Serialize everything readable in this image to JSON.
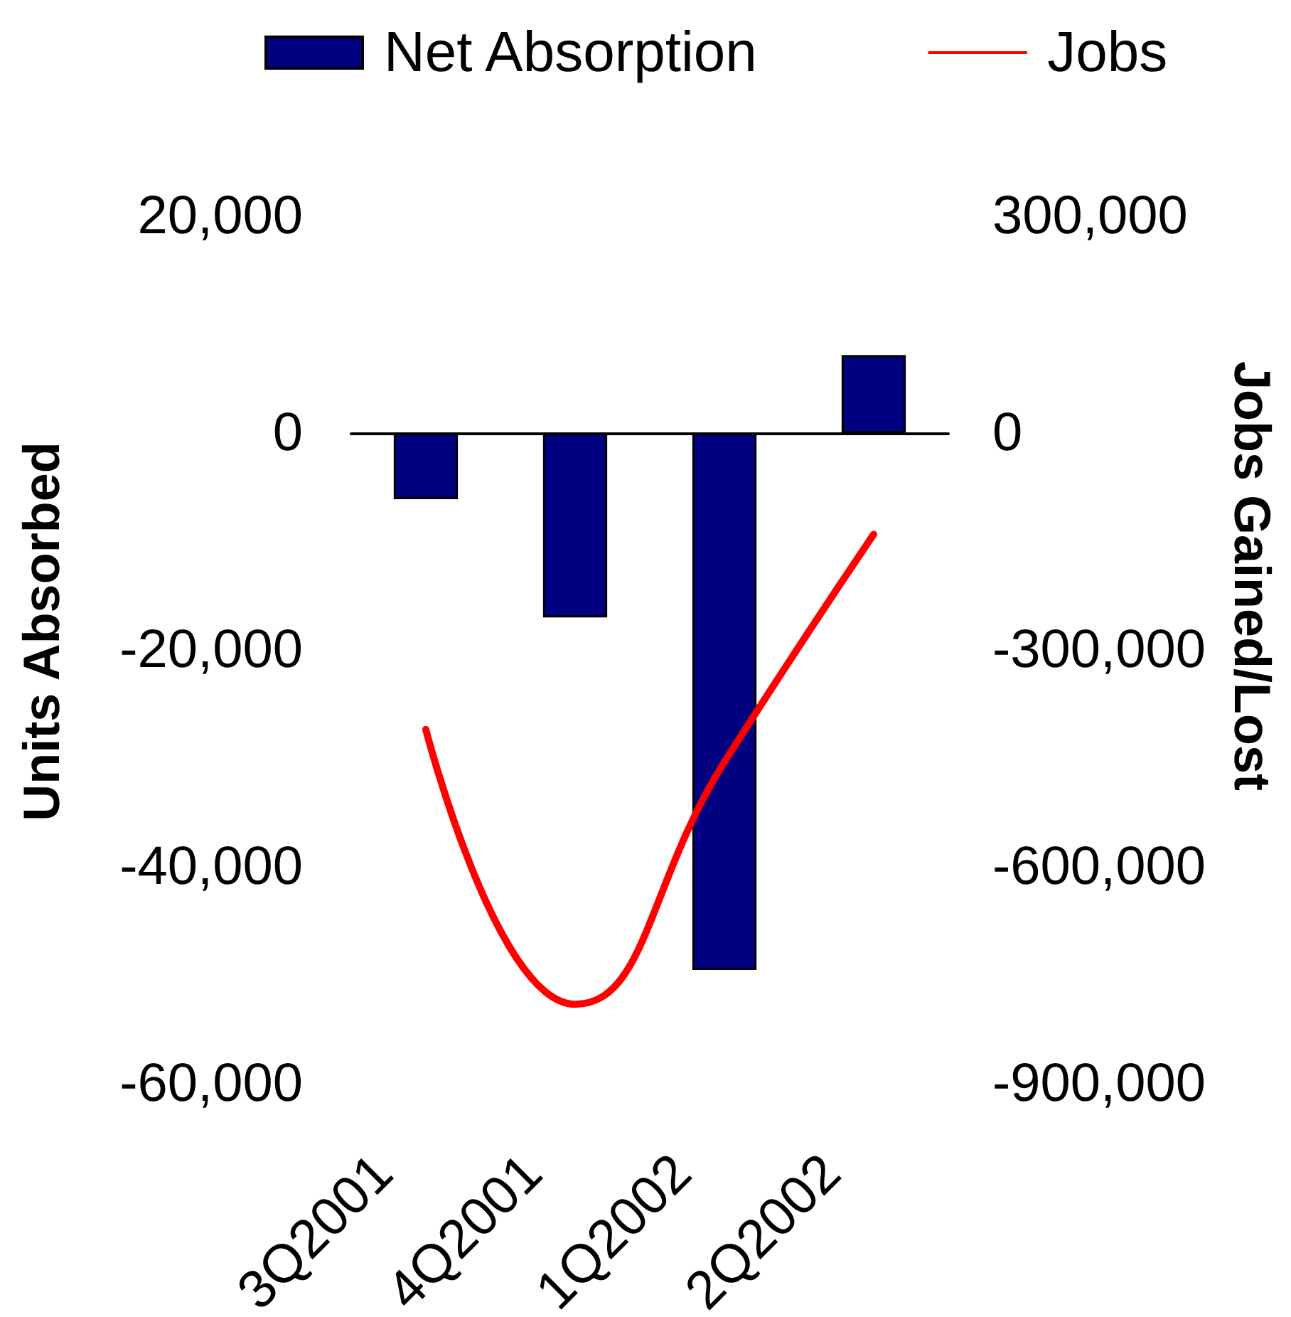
{
  "chart_data": {
    "type": "bar",
    "categories": [
      "3Q2001",
      "4Q2001",
      "1Q2002",
      "2Q2002"
    ],
    "ylabel": "Units Absorbed",
    "y2label": "Jobs Gained/Lost",
    "series": [
      {
        "name": "Net Absorption",
        "color": "#000080",
        "values": [
          -6100,
          -17000,
          -49500,
          7200
        ]
      },
      {
        "name": "Jobs",
        "type": "line",
        "color": "#ff0000",
        "axis": "y2",
        "values": [
          -410000,
          -790000,
          -455000,
          -140000
        ]
      }
    ],
    "ylim": [
      -60000,
      20000
    ],
    "yticks": [
      {
        "value": -60000,
        "label": "-60,000"
      },
      {
        "value": -40000,
        "label": "-40,000"
      },
      {
        "value": -20000,
        "label": "-20,000"
      },
      0,
      {
        "value": 20000,
        "label": "20,000"
      }
    ],
    "y2lim": [
      -900000,
      300000
    ],
    "y2ticks": [
      {
        "value": -900000,
        "label": "-900,000"
      },
      {
        "value": -600000,
        "label": "-600,000"
      },
      {
        "value": -300000,
        "label": "-300,000"
      },
      0,
      {
        "value": 300000,
        "label": "300,000"
      }
    ],
    "legend": "top",
    "marker": "none"
  }
}
